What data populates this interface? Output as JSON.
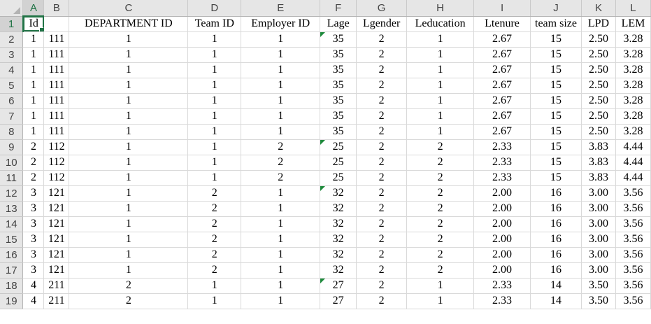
{
  "columns": [
    "A",
    "B",
    "C",
    "D",
    "E",
    "F",
    "G",
    "H",
    "I",
    "J",
    "K",
    "L"
  ],
  "active_column": "A",
  "active_row": "1",
  "selected_cell": "A1",
  "flagged_cells": [
    "F2",
    "F9",
    "F12",
    "F18"
  ],
  "colors": {
    "accent": "#217346",
    "error_indicator": "#1e8a3c",
    "header_bg": "#e6e6e6"
  },
  "rows": [
    {
      "num": "1",
      "cells": [
        "Id",
        "",
        "DEPARTMENT ID",
        "Team ID",
        "Employer ID",
        "Lage",
        "Lgender",
        "Leducation",
        "Ltenure",
        "team size",
        "LPD",
        "LEM"
      ]
    },
    {
      "num": "2",
      "cells": [
        "1",
        "111",
        "1",
        "1",
        "1",
        "35",
        "2",
        "1",
        "2.67",
        "15",
        "2.50",
        "3.28"
      ]
    },
    {
      "num": "3",
      "cells": [
        "1",
        "111",
        "1",
        "1",
        "1",
        "35",
        "2",
        "1",
        "2.67",
        "15",
        "2.50",
        "3.28"
      ]
    },
    {
      "num": "4",
      "cells": [
        "1",
        "111",
        "1",
        "1",
        "1",
        "35",
        "2",
        "1",
        "2.67",
        "15",
        "2.50",
        "3.28"
      ]
    },
    {
      "num": "5",
      "cells": [
        "1",
        "111",
        "1",
        "1",
        "1",
        "35",
        "2",
        "1",
        "2.67",
        "15",
        "2.50",
        "3.28"
      ]
    },
    {
      "num": "6",
      "cells": [
        "1",
        "111",
        "1",
        "1",
        "1",
        "35",
        "2",
        "1",
        "2.67",
        "15",
        "2.50",
        "3.28"
      ]
    },
    {
      "num": "7",
      "cells": [
        "1",
        "111",
        "1",
        "1",
        "1",
        "35",
        "2",
        "1",
        "2.67",
        "15",
        "2.50",
        "3.28"
      ]
    },
    {
      "num": "8",
      "cells": [
        "1",
        "111",
        "1",
        "1",
        "1",
        "35",
        "2",
        "1",
        "2.67",
        "15",
        "2.50",
        "3.28"
      ]
    },
    {
      "num": "9",
      "cells": [
        "2",
        "112",
        "1",
        "1",
        "2",
        "25",
        "2",
        "2",
        "2.33",
        "15",
        "3.83",
        "4.44"
      ]
    },
    {
      "num": "10",
      "cells": [
        "2",
        "112",
        "1",
        "1",
        "2",
        "25",
        "2",
        "2",
        "2.33",
        "15",
        "3.83",
        "4.44"
      ]
    },
    {
      "num": "11",
      "cells": [
        "2",
        "112",
        "1",
        "1",
        "2",
        "25",
        "2",
        "2",
        "2.33",
        "15",
        "3.83",
        "4.44"
      ]
    },
    {
      "num": "12",
      "cells": [
        "3",
        "121",
        "1",
        "2",
        "1",
        "32",
        "2",
        "2",
        "2.00",
        "16",
        "3.00",
        "3.56"
      ]
    },
    {
      "num": "13",
      "cells": [
        "3",
        "121",
        "1",
        "2",
        "1",
        "32",
        "2",
        "2",
        "2.00",
        "16",
        "3.00",
        "3.56"
      ]
    },
    {
      "num": "14",
      "cells": [
        "3",
        "121",
        "1",
        "2",
        "1",
        "32",
        "2",
        "2",
        "2.00",
        "16",
        "3.00",
        "3.56"
      ]
    },
    {
      "num": "15",
      "cells": [
        "3",
        "121",
        "1",
        "2",
        "1",
        "32",
        "2",
        "2",
        "2.00",
        "16",
        "3.00",
        "3.56"
      ]
    },
    {
      "num": "16",
      "cells": [
        "3",
        "121",
        "1",
        "2",
        "1",
        "32",
        "2",
        "2",
        "2.00",
        "16",
        "3.00",
        "3.56"
      ]
    },
    {
      "num": "17",
      "cells": [
        "3",
        "121",
        "1",
        "2",
        "1",
        "32",
        "2",
        "2",
        "2.00",
        "16",
        "3.00",
        "3.56"
      ]
    },
    {
      "num": "18",
      "cells": [
        "4",
        "211",
        "2",
        "1",
        "1",
        "27",
        "2",
        "1",
        "2.33",
        "14",
        "3.50",
        "3.56"
      ]
    },
    {
      "num": "19",
      "cells": [
        "4",
        "211",
        "2",
        "1",
        "1",
        "27",
        "2",
        "1",
        "2.33",
        "14",
        "3.50",
        "3.56"
      ]
    }
  ]
}
